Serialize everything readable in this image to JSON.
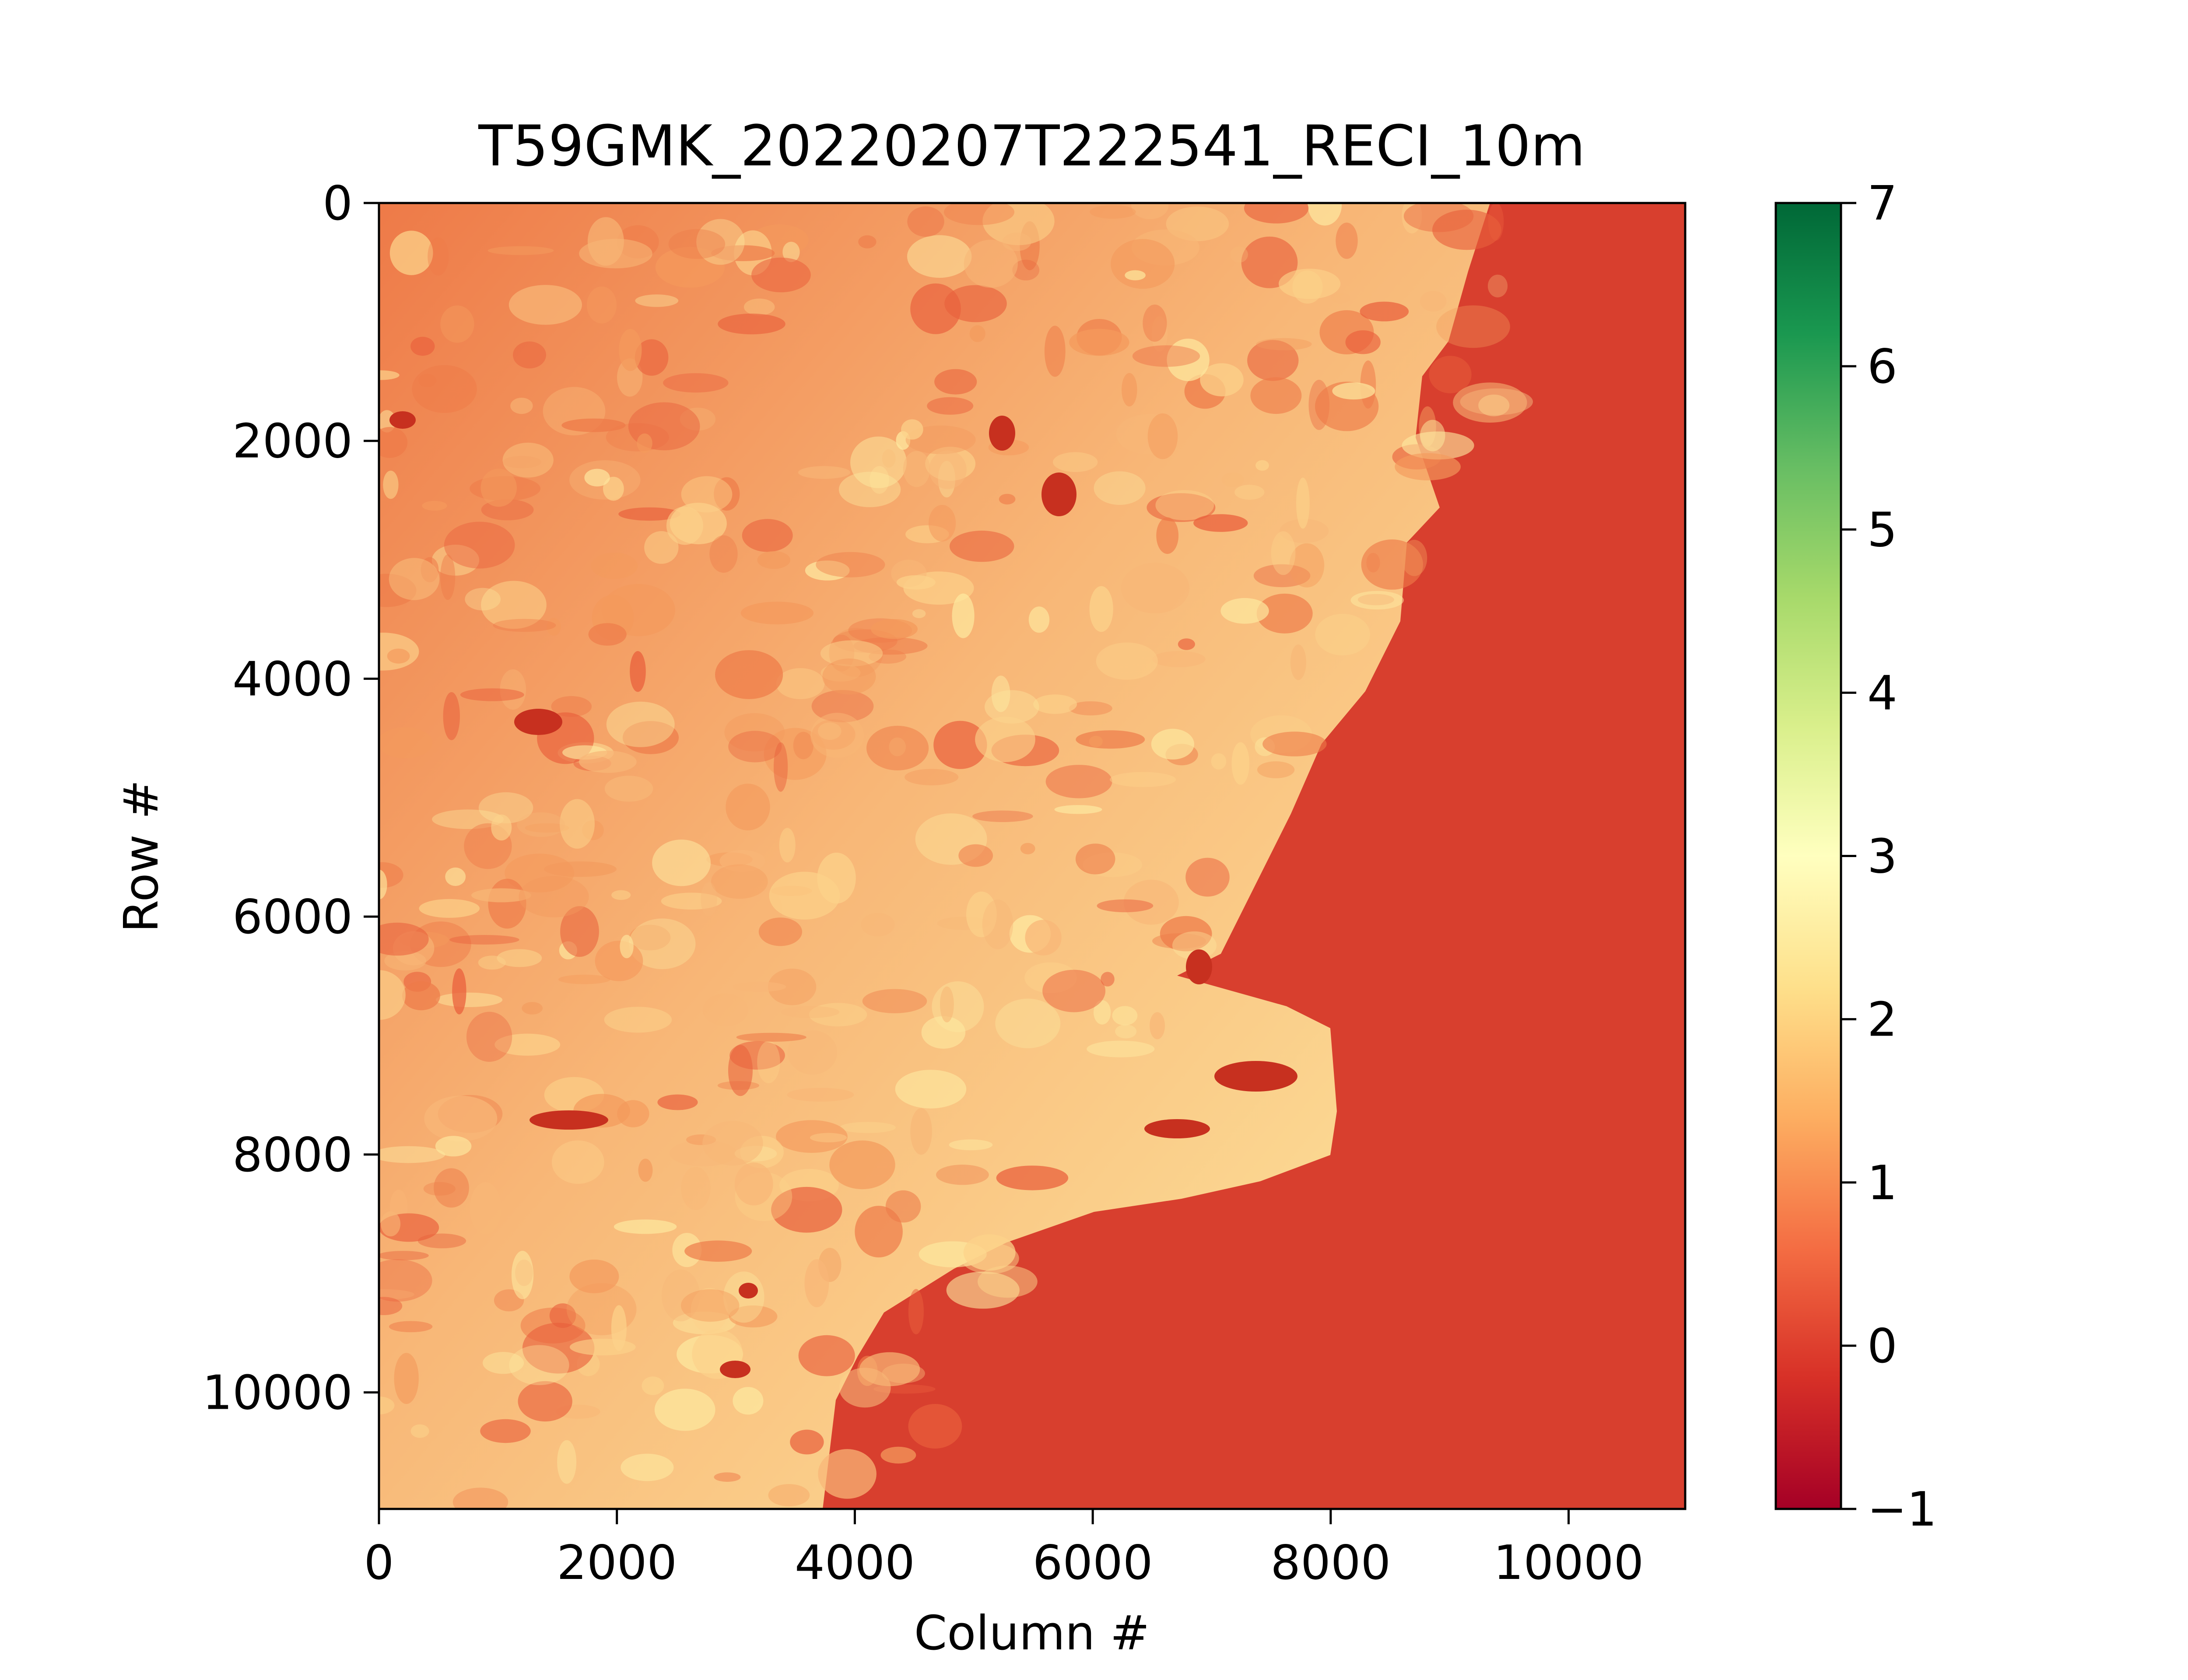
{
  "chart_data": {
    "type": "heatmap",
    "title": "T59GMK_20220207T222541_RECI_10m",
    "xlabel": "Column #",
    "ylabel": "Row #",
    "xlim": [
      0,
      10980
    ],
    "ylim": [
      10980,
      0
    ],
    "xticks": [
      0,
      2000,
      4000,
      6000,
      8000,
      10000
    ],
    "xtick_labels": [
      "0",
      "2000",
      "4000",
      "6000",
      "8000",
      "10000"
    ],
    "yticks": [
      0,
      2000,
      4000,
      6000,
      8000,
      10000
    ],
    "ytick_labels": [
      "0",
      "2000",
      "4000",
      "6000",
      "8000",
      "10000"
    ],
    "colorbar": {
      "colormap": "RdYlGn",
      "min": -1,
      "max": 7,
      "ticks": [
        -1,
        0,
        1,
        2,
        3,
        4,
        5,
        6,
        7
      ],
      "tick_labels": [
        "−1",
        "0",
        "1",
        "2",
        "3",
        "4",
        "5",
        "6",
        "7"
      ],
      "colors": [
        "#a50026",
        "#d73027",
        "#f46d43",
        "#fdae61",
        "#fee08b",
        "#ffffbf",
        "#d9ef8b",
        "#a6d96a",
        "#66bd63",
        "#1a9850",
        "#006837"
      ]
    },
    "grid": false,
    "legend": "none",
    "image_description_colors": {
      "sea": "#d83f2e",
      "land_low": "#ee7a48",
      "land_mid": "#f8b777",
      "land_high": "#fde9a0"
    }
  }
}
